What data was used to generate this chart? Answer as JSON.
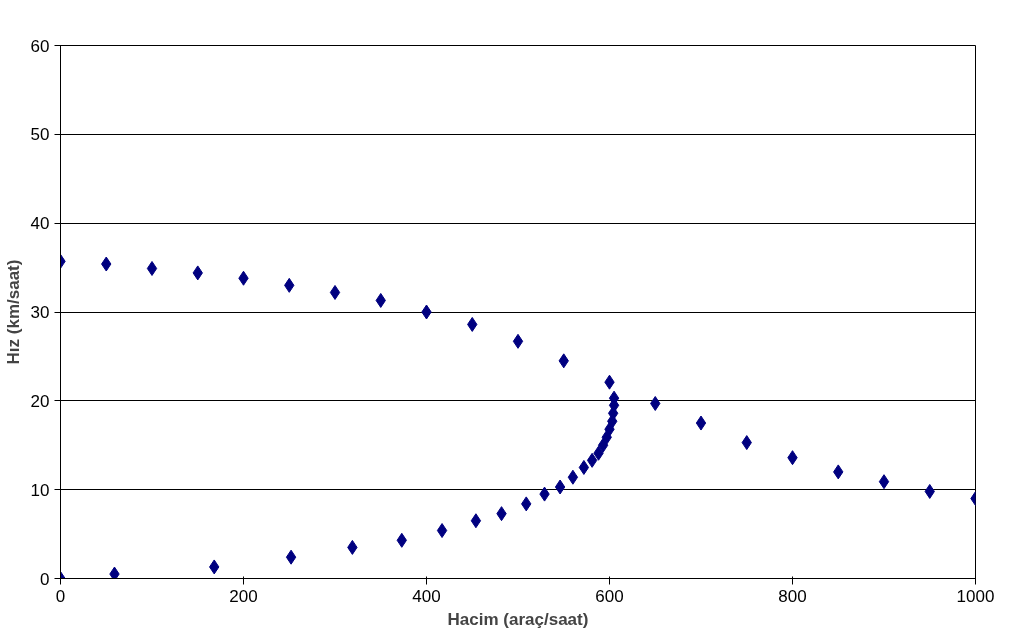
{
  "chart_data": {
    "type": "scatter",
    "xlabel": "Hacim (araç/saat)",
    "ylabel": "Hız (km/saat)",
    "x": [
      0,
      50,
      100,
      150,
      200,
      250,
      300,
      350,
      400,
      450,
      500,
      550,
      600,
      650,
      700,
      750,
      800,
      850,
      900,
      950,
      1000,
      0,
      59,
      168,
      252,
      319,
      373,
      417,
      454,
      482,
      509,
      529,
      546,
      560,
      572,
      581,
      588,
      593,
      597,
      600,
      603,
      604,
      605,
      605
    ],
    "values": [
      35.7,
      35.4,
      34.9,
      34.4,
      33.8,
      33.0,
      32.2,
      31.3,
      30.0,
      28.6,
      26.7,
      24.5,
      22.1,
      19.7,
      17.5,
      15.3,
      13.6,
      12.0,
      10.9,
      9.8,
      9.0,
      0,
      0.5,
      1.3,
      2.4,
      3.5,
      4.3,
      5.4,
      6.5,
      7.3,
      8.4,
      9.5,
      10.3,
      11.4,
      12.5,
      13.3,
      14.1,
      15.0,
      15.9,
      16.8,
      17.7,
      18.6,
      19.5,
      20.3
    ],
    "color": "#000080",
    "marker": "diamond",
    "xlim": [
      0,
      1000
    ],
    "ylim": [
      0,
      60
    ],
    "xticks": [
      0,
      200,
      400,
      600,
      800,
      1000
    ],
    "yticks": [
      0,
      10,
      20,
      30,
      40,
      50,
      60
    ],
    "grid": "y"
  }
}
